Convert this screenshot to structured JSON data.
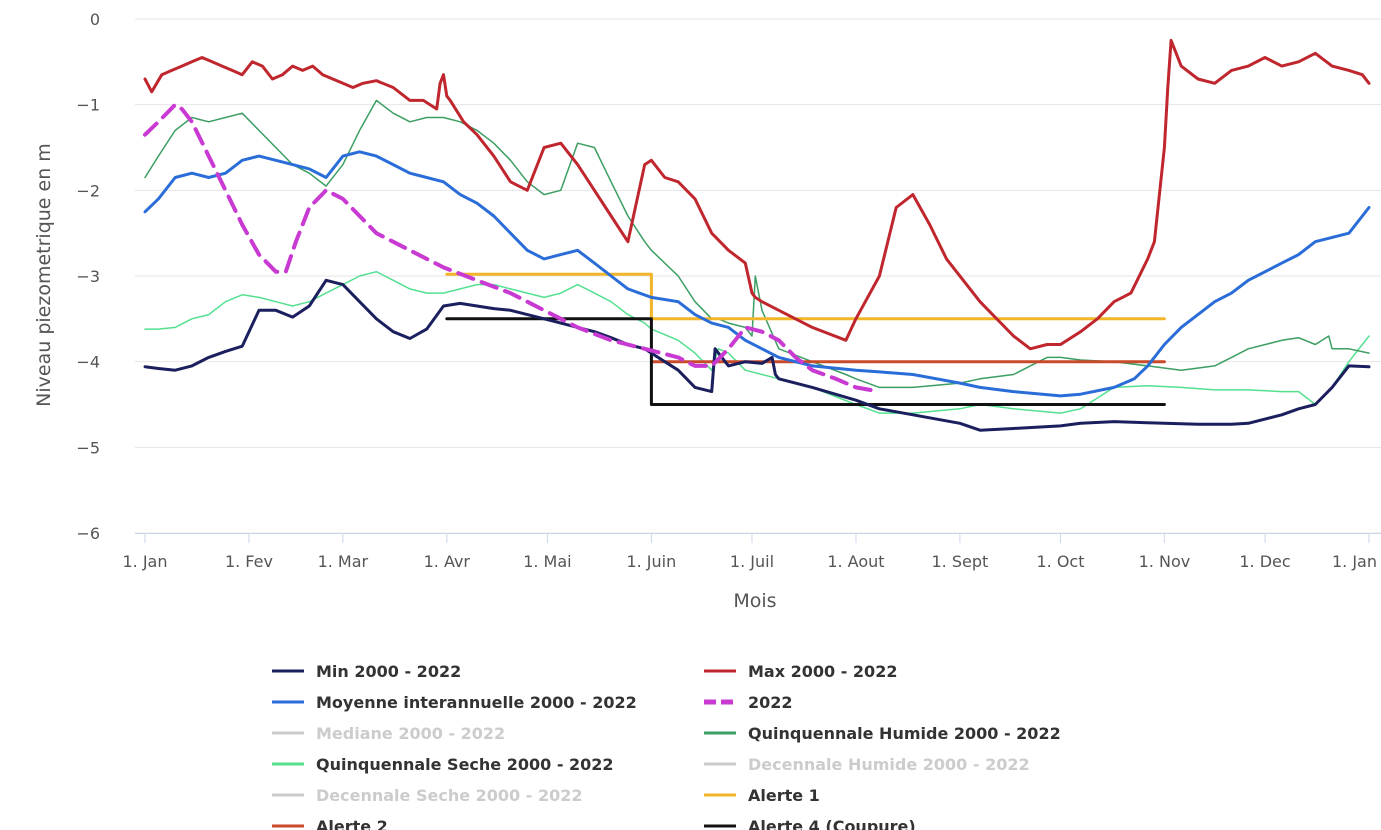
{
  "chart_data": {
    "type": "line",
    "title": "",
    "xlabel": "Mois",
    "ylabel": "Niveau piezometrique en m",
    "ylim": [
      -6,
      0
    ],
    "y_ticks": [
      0,
      -1,
      -2,
      -3,
      -4,
      -5,
      -6
    ],
    "y_tick_labels": [
      "0",
      "−1",
      "−2",
      "−3",
      "−4",
      "−5",
      "−6"
    ],
    "x_unit": "day of year",
    "xlim": [
      1,
      366
    ],
    "x_ticks": [
      1,
      32,
      60,
      91,
      121,
      152,
      182,
      213,
      244,
      274,
      305,
      335,
      366
    ],
    "x_tick_labels": [
      "1. Jan",
      "1. Fev",
      "1. Mar",
      "1. Avr",
      "1. Mai",
      "1. Juin",
      "1. Juil",
      "1. Aout",
      "1. Sept",
      "1. Oct",
      "1. Nov",
      "1. Dec",
      "1. Jan"
    ],
    "grid": "horizontal",
    "legend_position": "bottom",
    "series": [
      {
        "name": "Min 2000 - 2022",
        "color": "#1b1f5e",
        "width": 3,
        "visible": true,
        "x": [
          1,
          5,
          10,
          15,
          20,
          25,
          30,
          35,
          40,
          45,
          50,
          55,
          60,
          65,
          70,
          75,
          80,
          85,
          90,
          95,
          100,
          105,
          110,
          115,
          120,
          125,
          130,
          135,
          140,
          145,
          150,
          152,
          160,
          165,
          170,
          171,
          172,
          175,
          180,
          185,
          188,
          189,
          190,
          200,
          213,
          220,
          230,
          244,
          250,
          260,
          274,
          280,
          290,
          305,
          315,
          325,
          330,
          340,
          345,
          350,
          355,
          360,
          366
        ],
        "y": [
          -4.06,
          -4.08,
          -4.1,
          -4.05,
          -3.95,
          -3.88,
          -3.82,
          -3.4,
          -3.4,
          -3.48,
          -3.35,
          -3.05,
          -3.1,
          -3.3,
          -3.5,
          -3.65,
          -3.73,
          -3.62,
          -3.35,
          -3.32,
          -3.35,
          -3.38,
          -3.4,
          -3.45,
          -3.5,
          -3.55,
          -3.6,
          -3.65,
          -3.72,
          -3.8,
          -3.85,
          -3.9,
          -4.1,
          -4.3,
          -4.35,
          -3.85,
          -3.9,
          -4.05,
          -4.0,
          -4.02,
          -3.95,
          -4.15,
          -4.2,
          -4.3,
          -4.45,
          -4.55,
          -4.62,
          -4.72,
          -4.8,
          -4.78,
          -4.75,
          -4.72,
          -4.7,
          -4.72,
          -4.73,
          -4.73,
          -4.72,
          -4.62,
          -4.55,
          -4.5,
          -4.3,
          -4.05,
          -4.06
        ]
      },
      {
        "name": "Max 2000 - 2022",
        "color": "#c0262d",
        "width": 3,
        "visible": true,
        "x": [
          1,
          3,
          6,
          9,
          12,
          15,
          18,
          21,
          24,
          27,
          30,
          33,
          36,
          39,
          42,
          45,
          48,
          51,
          54,
          57,
          60,
          63,
          66,
          70,
          75,
          80,
          84,
          88,
          89,
          90,
          91,
          92,
          96,
          100,
          105,
          110,
          115,
          120,
          125,
          130,
          135,
          140,
          145,
          150,
          152,
          156,
          160,
          165,
          170,
          175,
          180,
          182,
          183,
          185,
          190,
          200,
          210,
          213,
          220,
          225,
          230,
          235,
          240,
          250,
          260,
          265,
          270,
          274,
          280,
          285,
          290,
          295,
          300,
          302,
          305,
          306,
          307,
          310,
          315,
          320,
          325,
          330,
          335,
          340,
          345,
          350,
          355,
          360,
          364,
          366
        ],
        "y": [
          -0.7,
          -0.85,
          -0.65,
          -0.6,
          -0.55,
          -0.5,
          -0.45,
          -0.5,
          -0.55,
          -0.6,
          -0.65,
          -0.5,
          -0.55,
          -0.7,
          -0.65,
          -0.55,
          -0.6,
          -0.55,
          -0.65,
          -0.7,
          -0.75,
          -0.8,
          -0.75,
          -0.72,
          -0.8,
          -0.95,
          -0.95,
          -1.05,
          -0.75,
          -0.65,
          -0.9,
          -0.95,
          -1.2,
          -1.35,
          -1.6,
          -1.9,
          -2.0,
          -1.5,
          -1.45,
          -1.7,
          -2.0,
          -2.3,
          -2.6,
          -1.7,
          -1.65,
          -1.85,
          -1.9,
          -2.1,
          -2.5,
          -2.7,
          -2.85,
          -3.2,
          -3.25,
          -3.3,
          -3.4,
          -3.6,
          -3.75,
          -3.5,
          -3.0,
          -2.2,
          -2.05,
          -2.4,
          -2.8,
          -3.3,
          -3.7,
          -3.85,
          -3.8,
          -3.8,
          -3.65,
          -3.5,
          -3.3,
          -3.2,
          -2.8,
          -2.6,
          -1.5,
          -0.8,
          -0.25,
          -0.55,
          -0.7,
          -0.75,
          -0.6,
          -0.55,
          -0.45,
          -0.55,
          -0.5,
          -0.4,
          -0.55,
          -0.6,
          -0.65,
          -0.75
        ]
      },
      {
        "name": "Moyenne interannuelle 2000 - 2022",
        "color": "#2a6dd8",
        "width": 3,
        "visible": true,
        "x": [
          1,
          5,
          10,
          15,
          20,
          25,
          30,
          35,
          40,
          45,
          50,
          55,
          60,
          65,
          70,
          75,
          80,
          85,
          90,
          95,
          100,
          105,
          110,
          115,
          120,
          125,
          130,
          135,
          140,
          145,
          152,
          160,
          165,
          170,
          175,
          180,
          185,
          190,
          200,
          213,
          220,
          230,
          244,
          250,
          260,
          274,
          280,
          290,
          296,
          300,
          305,
          310,
          320,
          325,
          330,
          340,
          345,
          350,
          355,
          360,
          366
        ],
        "y": [
          -2.25,
          -2.1,
          -1.85,
          -1.8,
          -1.85,
          -1.8,
          -1.65,
          -1.6,
          -1.65,
          -1.7,
          -1.75,
          -1.85,
          -1.6,
          -1.55,
          -1.6,
          -1.7,
          -1.8,
          -1.85,
          -1.9,
          -2.05,
          -2.15,
          -2.3,
          -2.5,
          -2.7,
          -2.8,
          -2.75,
          -2.7,
          -2.85,
          -3.0,
          -3.15,
          -3.25,
          -3.3,
          -3.45,
          -3.55,
          -3.6,
          -3.75,
          -3.85,
          -3.95,
          -4.05,
          -4.1,
          -4.12,
          -4.15,
          -4.25,
          -4.3,
          -4.35,
          -4.4,
          -4.38,
          -4.3,
          -4.2,
          -4.05,
          -3.8,
          -3.6,
          -3.3,
          -3.2,
          -3.05,
          -2.85,
          -2.75,
          -2.6,
          -2.55,
          -2.5,
          -2.2
        ]
      },
      {
        "name": "2022",
        "color": "#c93ad2",
        "width": 4,
        "dashed": true,
        "visible": true,
        "x": [
          1,
          5,
          10,
          12,
          15,
          20,
          25,
          30,
          35,
          40,
          43,
          46,
          50,
          55,
          60,
          65,
          70,
          80,
          90,
          100,
          110,
          120,
          130,
          140,
          150,
          160,
          165,
          170,
          175,
          180,
          185,
          190,
          195,
          200,
          207,
          213,
          220
        ],
        "y": [
          -1.35,
          -1.2,
          -1.0,
          -1.05,
          -1.2,
          -1.6,
          -2.0,
          -2.4,
          -2.75,
          -2.95,
          -2.95,
          -2.6,
          -2.2,
          -2.0,
          -2.1,
          -2.3,
          -2.5,
          -2.7,
          -2.9,
          -3.05,
          -3.2,
          -3.4,
          -3.6,
          -3.75,
          -3.85,
          -3.95,
          -4.05,
          -4.05,
          -3.85,
          -3.6,
          -3.65,
          -3.75,
          -3.95,
          -4.1,
          -4.2,
          -4.3,
          -4.35
        ]
      },
      {
        "name": "Mediane 2000 - 2022",
        "color": "#aaaaaa",
        "visible": false
      },
      {
        "name": "Quinquennale Humide 2000 - 2022",
        "color": "#3c9e63",
        "width": 1.5,
        "visible": true,
        "x": [
          1,
          5,
          10,
          15,
          20,
          25,
          30,
          35,
          40,
          45,
          50,
          55,
          60,
          65,
          70,
          75,
          80,
          85,
          90,
          95,
          100,
          105,
          110,
          115,
          120,
          125,
          130,
          135,
          140,
          145,
          150,
          152,
          160,
          165,
          170,
          172,
          175,
          180,
          182,
          183,
          185,
          190,
          200,
          210,
          213,
          220,
          230,
          244,
          250,
          260,
          265,
          270,
          274,
          280,
          290,
          300,
          310,
          320,
          325,
          330,
          340,
          345,
          350,
          354,
          355,
          360,
          366
        ],
        "y": [
          -1.85,
          -1.6,
          -1.3,
          -1.15,
          -1.2,
          -1.15,
          -1.1,
          -1.3,
          -1.5,
          -1.7,
          -1.8,
          -1.95,
          -1.7,
          -1.3,
          -0.95,
          -1.1,
          -1.2,
          -1.15,
          -1.15,
          -1.2,
          -1.3,
          -1.45,
          -1.65,
          -1.9,
          -2.05,
          -2.0,
          -1.45,
          -1.5,
          -1.9,
          -2.3,
          -2.6,
          -2.7,
          -3.0,
          -3.3,
          -3.5,
          -3.5,
          -3.55,
          -3.6,
          -3.7,
          -3.0,
          -3.4,
          -3.85,
          -4.0,
          -4.15,
          -4.2,
          -4.3,
          -4.3,
          -4.25,
          -4.2,
          -4.15,
          -4.05,
          -3.95,
          -3.95,
          -3.98,
          -4.0,
          -4.05,
          -4.1,
          -4.05,
          -3.95,
          -3.85,
          -3.75,
          -3.72,
          -3.8,
          -3.7,
          -3.85,
          -3.85,
          -3.9
        ]
      },
      {
        "name": "Quinquennale Seche 2000 - 2022",
        "color": "#55e090",
        "width": 1.5,
        "visible": true,
        "x": [
          1,
          5,
          10,
          15,
          20,
          25,
          30,
          35,
          40,
          45,
          50,
          55,
          60,
          65,
          70,
          75,
          80,
          85,
          90,
          95,
          100,
          105,
          110,
          115,
          120,
          125,
          130,
          135,
          140,
          145,
          150,
          152,
          160,
          165,
          170,
          172,
          175,
          180,
          185,
          190,
          200,
          213,
          220,
          230,
          244,
          250,
          260,
          274,
          280,
          290,
          300,
          310,
          320,
          330,
          340,
          345,
          350,
          355,
          360,
          366
        ],
        "y": [
          -3.62,
          -3.62,
          -3.6,
          -3.5,
          -3.45,
          -3.3,
          -3.22,
          -3.25,
          -3.3,
          -3.35,
          -3.3,
          -3.2,
          -3.1,
          -3.0,
          -2.95,
          -3.05,
          -3.15,
          -3.2,
          -3.2,
          -3.15,
          -3.1,
          -3.1,
          -3.15,
          -3.2,
          -3.25,
          -3.2,
          -3.1,
          -3.2,
          -3.3,
          -3.45,
          -3.55,
          -3.62,
          -3.75,
          -3.9,
          -4.1,
          -3.85,
          -3.9,
          -4.1,
          -4.15,
          -4.2,
          -4.3,
          -4.5,
          -4.6,
          -4.6,
          -4.55,
          -4.5,
          -4.55,
          -4.6,
          -4.55,
          -4.3,
          -4.28,
          -4.3,
          -4.33,
          -4.33,
          -4.35,
          -4.35,
          -4.5,
          -4.3,
          -4.0,
          -3.7
        ]
      },
      {
        "name": "Decennale Humide 2000 - 2022",
        "color": "#dddddd",
        "visible": false
      },
      {
        "name": "Decennale Seche 2000 - 2022",
        "color": "#dddddd",
        "visible": false
      },
      {
        "name": "Alerte 1",
        "color": "#f2b52a",
        "width": 3,
        "visible": true,
        "x": [
          91,
          152,
          152,
          305
        ],
        "y": [
          -2.98,
          -2.98,
          -3.5,
          -3.5
        ]
      },
      {
        "name": "Alerte 2",
        "color": "#c84a2a",
        "width": 3,
        "visible": true,
        "x": [
          152,
          305
        ],
        "y": [
          -4.0,
          -4.0
        ]
      },
      {
        "name": "Alerte 4 (Coupure)",
        "color": "#111111",
        "width": 3,
        "visible": true,
        "x": [
          91,
          152,
          152,
          305
        ],
        "y": [
          -3.5,
          -3.5,
          -4.5,
          -4.5
        ]
      }
    ]
  }
}
